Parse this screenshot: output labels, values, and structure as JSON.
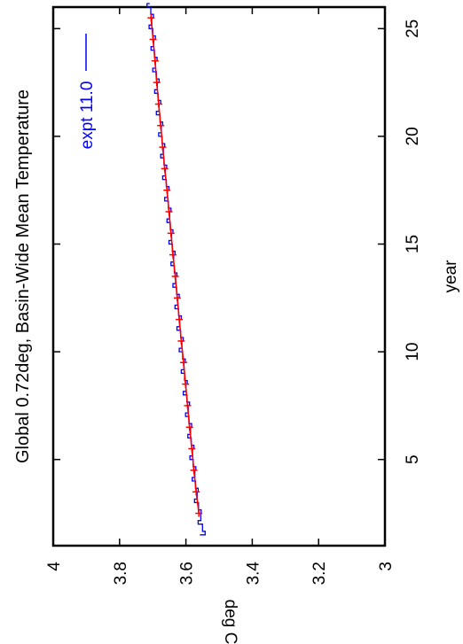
{
  "chart_data": {
    "type": "line",
    "title": "Global 0.72deg, Basin-Wide Mean Temperature",
    "xlabel": "year",
    "ylabel": "deg C",
    "xlim": [
      1,
      26
    ],
    "ylim": [
      3,
      4
    ],
    "x_ticks": [
      5,
      10,
      15,
      20,
      25
    ],
    "y_ticks": [
      3,
      3.2,
      3.4,
      3.6,
      3.8,
      4
    ],
    "grid": false,
    "orientation": "rotated-90-ccw",
    "legend": {
      "placement": "top-right"
    },
    "colors": {
      "monthly": "#0000ff",
      "annual": "#ff0000",
      "axes": "#000000"
    },
    "series": [
      {
        "name": "expt 11.0",
        "style": "step",
        "color": "#0000ff",
        "x": [
          1.5,
          2.0,
          2.5,
          3.0,
          3.5,
          4.0,
          4.5,
          5.0,
          5.5,
          6.0,
          6.5,
          7.0,
          7.5,
          8.0,
          8.5,
          9.0,
          9.5,
          10.0,
          10.5,
          11.0,
          11.5,
          12.0,
          12.5,
          13.0,
          13.5,
          14.0,
          14.5,
          15.0,
          15.5,
          16.0,
          16.5,
          17.0,
          17.5,
          18.0,
          18.5,
          19.0,
          19.5,
          20.0,
          20.5,
          21.0,
          21.5,
          22.0,
          22.5,
          23.0,
          23.5,
          24.0,
          24.5,
          25.0,
          25.5,
          26.0
        ],
        "y": [
          3.55,
          3.555,
          3.562,
          3.566,
          3.571,
          3.573,
          3.578,
          3.58,
          3.584,
          3.586,
          3.591,
          3.593,
          3.597,
          3.6,
          3.604,
          3.606,
          3.61,
          3.612,
          3.616,
          3.619,
          3.622,
          3.625,
          3.628,
          3.631,
          3.635,
          3.637,
          3.641,
          3.643,
          3.647,
          3.649,
          3.653,
          3.656,
          3.659,
          3.662,
          3.666,
          3.668,
          3.672,
          3.674,
          3.678,
          3.681,
          3.684,
          3.686,
          3.689,
          3.692,
          3.695,
          3.697,
          3.7,
          3.703,
          3.706,
          3.709
        ]
      },
      {
        "style": "line-markers",
        "color": "#ff0000",
        "x": [
          2.5,
          3.5,
          4.5,
          5.5,
          6.5,
          7.5,
          8.5,
          9.5,
          10.5,
          11.5,
          12.5,
          13.5,
          14.5,
          15.5,
          16.5,
          17.5,
          18.5,
          19.5,
          20.5,
          21.5,
          22.5,
          23.5,
          24.5,
          25.5
        ],
        "y": [
          3.561,
          3.569,
          3.576,
          3.582,
          3.589,
          3.595,
          3.601,
          3.607,
          3.614,
          3.62,
          3.626,
          3.632,
          3.639,
          3.645,
          3.651,
          3.657,
          3.664,
          3.67,
          3.676,
          3.682,
          3.688,
          3.693,
          3.699,
          3.705
        ]
      }
    ]
  }
}
